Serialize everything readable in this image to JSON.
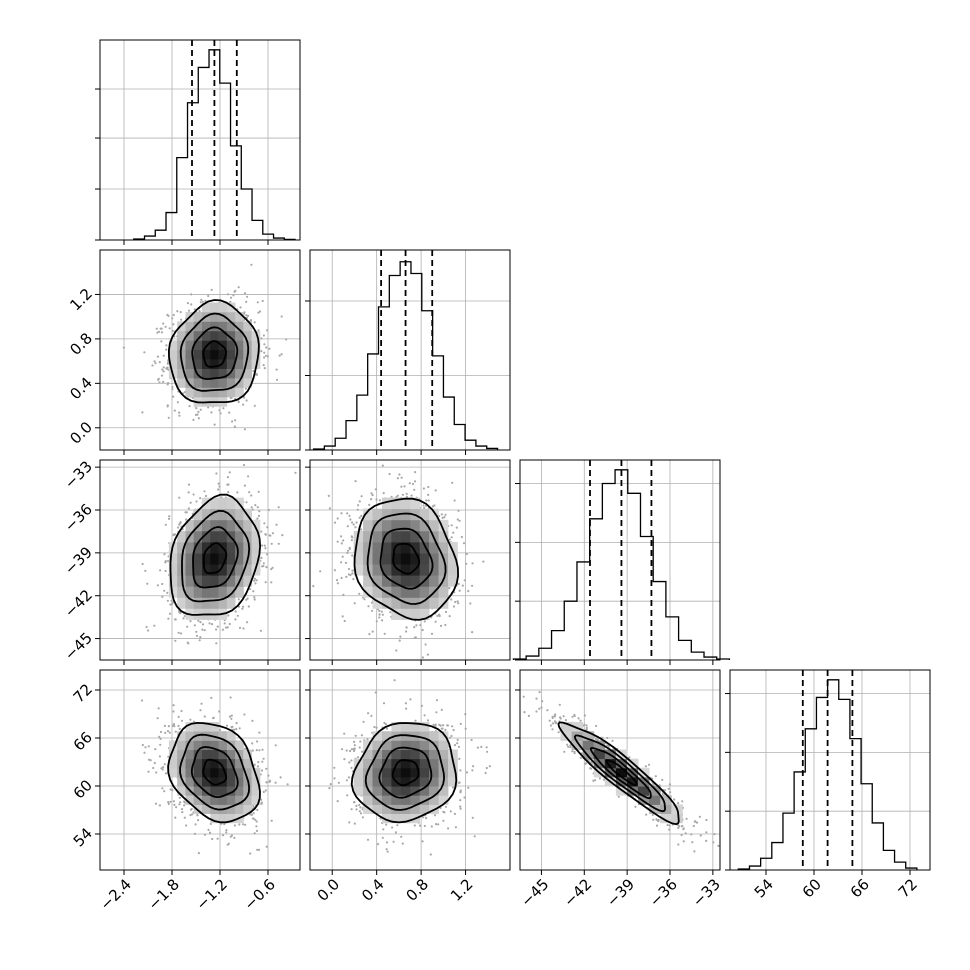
{
  "chart_data": {
    "type": "corner",
    "grid": true,
    "parameters": [
      {
        "index": 0,
        "median": -1.27,
        "q16": -1.55,
        "q84": -0.99,
        "range": [
          -2.7,
          -0.2
        ],
        "sigma": 0.28,
        "ticks": [
          -2.4,
          -1.8,
          -1.2,
          -0.6
        ],
        "tick_labels": [
          "−2.4",
          "−1.8",
          "−1.2",
          "−0.6"
        ]
      },
      {
        "index": 1,
        "median": 0.66,
        "q16": 0.44,
        "q84": 0.9,
        "range": [
          -0.2,
          1.6
        ],
        "sigma": 0.23,
        "ticks": [
          0.0,
          0.4,
          0.8,
          1.2
        ],
        "tick_labels": [
          "0.0",
          "0.4",
          "0.8",
          "1.2"
        ]
      },
      {
        "index": 2,
        "median": -39.4,
        "q16": -41.6,
        "q84": -37.3,
        "range": [
          -46.5,
          -32.5
        ],
        "sigma": 2.1,
        "ticks": [
          -45,
          -42,
          -39,
          -36,
          -33
        ],
        "tick_labels": [
          "−45",
          "−42",
          "−39",
          "−36",
          "−33"
        ]
      },
      {
        "index": 3,
        "median": 61.7,
        "q16": 58.6,
        "q84": 64.8,
        "range": [
          49.5,
          74.5
        ],
        "sigma": 3.1,
        "ticks": [
          54,
          60,
          66,
          72
        ],
        "tick_labels": [
          "54",
          "60",
          "66",
          "72"
        ]
      }
    ],
    "histograms": [
      {
        "param": 0,
        "counts": [
          0.005,
          0.02,
          0.05,
          0.14,
          0.42,
          0.7,
          0.88,
          0.97,
          0.8,
          0.48,
          0.26,
          0.1,
          0.03,
          0.01,
          0.003
        ],
        "ylim": [
          0,
          1.02
        ],
        "yticks": [
          0.26,
          0.52,
          0.77
        ]
      },
      {
        "param": 1,
        "counts": [
          0.005,
          0.02,
          0.06,
          0.15,
          0.28,
          0.49,
          0.73,
          0.89,
          0.96,
          0.9,
          0.71,
          0.48,
          0.27,
          0.13,
          0.05,
          0.02,
          0.008
        ],
        "ylim": [
          0,
          1.02
        ],
        "yticks": [
          0.38,
          0.76
        ]
      },
      {
        "param": 2,
        "counts": [
          0.005,
          0.02,
          0.06,
          0.15,
          0.3,
          0.5,
          0.72,
          0.9,
          0.97,
          0.85,
          0.63,
          0.4,
          0.22,
          0.1,
          0.04,
          0.015,
          0.005
        ],
        "ylim": [
          0,
          1.02
        ],
        "yticks": [
          0.3,
          0.6,
          0.9
        ]
      },
      {
        "param": 3,
        "counts": [
          0.005,
          0.02,
          0.06,
          0.14,
          0.29,
          0.5,
          0.72,
          0.88,
          0.97,
          0.87,
          0.67,
          0.44,
          0.24,
          0.1,
          0.04,
          0.01
        ],
        "ylim": [
          0,
          1.02
        ],
        "yticks": [
          0.3,
          0.6,
          0.9
        ]
      }
    ],
    "pairs": [
      {
        "x": 0,
        "y": 1,
        "rho": 0.05
      },
      {
        "x": 0,
        "y": 2,
        "rho": 0.2
      },
      {
        "x": 1,
        "y": 2,
        "rho": -0.15
      },
      {
        "x": 0,
        "y": 3,
        "rho": -0.25
      },
      {
        "x": 1,
        "y": 3,
        "rho": 0.1
      },
      {
        "x": 2,
        "y": 3,
        "rho": -0.93
      }
    ],
    "contour_levels_sigma": [
      0.5,
      1.0,
      1.5,
      2.0
    ],
    "density_colormap": [
      "#ffffff",
      "#000000"
    ],
    "scatter_color": "#a8a8a8"
  }
}
